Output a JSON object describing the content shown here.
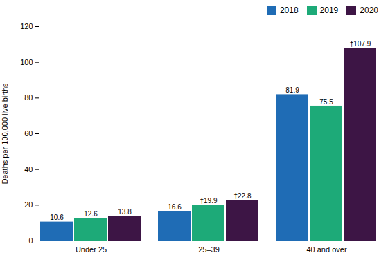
{
  "chart_data": {
    "type": "bar",
    "categories": [
      "Under 25",
      "25–39",
      "40 and over"
    ],
    "series": [
      {
        "name": "2018",
        "color": "#1F6CB5",
        "values": [
          10.6,
          16.6,
          81.9
        ]
      },
      {
        "name": "2019",
        "color": "#1DAA78",
        "values": [
          12.6,
          19.9,
          75.5
        ],
        "value_labels": [
          "12.6",
          "†19.9",
          "75.5"
        ]
      },
      {
        "name": "2020",
        "color": "#3D1545",
        "values": [
          13.8,
          22.8,
          107.9
        ],
        "value_labels": [
          "13.8",
          "†22.8",
          "†107.9"
        ]
      }
    ],
    "ylabel": "Deaths per 100,000 live births",
    "ylim": [
      0,
      120
    ],
    "yticks": [
      0,
      20,
      40,
      60,
      80,
      100,
      120
    ],
    "data_labels": true,
    "legend": "upper right",
    "grid": false
  }
}
